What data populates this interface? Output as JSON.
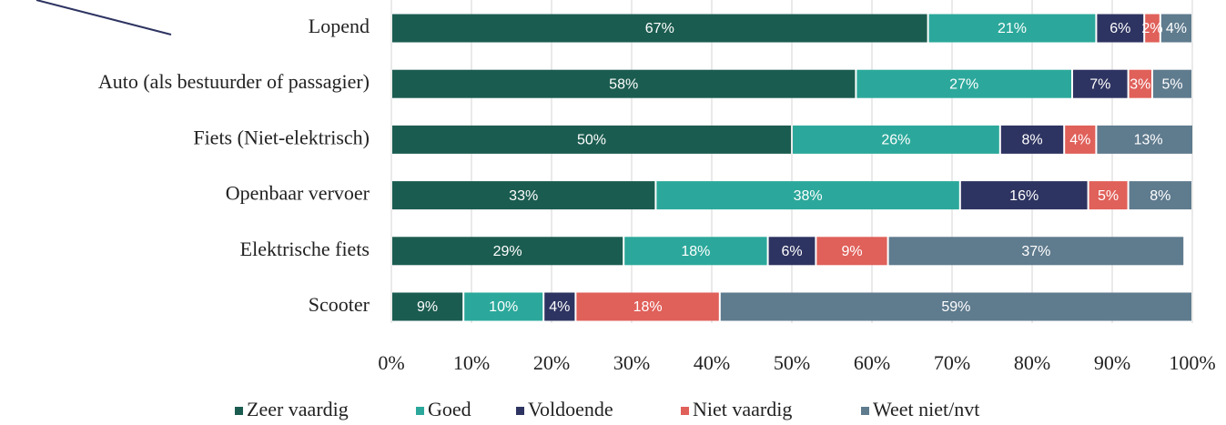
{
  "chart_data": {
    "type": "stacked_barh",
    "categories": [
      "Lopend",
      "Auto (als bestuurder of passagier)",
      "Fiets (Niet-elektrisch)",
      "Openbaar vervoer",
      "Elektrische fiets",
      "Scooter"
    ],
    "series": [
      {
        "name": "Zeer vaardig",
        "color": "#1b5c50",
        "values": [
          67,
          58,
          50,
          33,
          29,
          9
        ],
        "value_labels": [
          "67%",
          "58%",
          "50%",
          "33%",
          "29%",
          "9%"
        ]
      },
      {
        "name": "Goed",
        "color": "#2ba89b",
        "values": [
          21,
          27,
          26,
          38,
          18,
          10
        ],
        "value_labels": [
          "21%",
          "27%",
          "26%",
          "38%",
          "18%",
          "10%"
        ]
      },
      {
        "name": "Voldoende",
        "color": "#2e3461",
        "values": [
          6,
          7,
          8,
          16,
          6,
          4
        ],
        "value_labels": [
          "6%",
          "7%",
          "8%",
          "16%",
          "6%",
          "4%"
        ]
      },
      {
        "name": "Niet vaardig",
        "color": "#e0605a",
        "values": [
          2,
          3,
          4,
          5,
          9,
          18
        ],
        "value_labels": [
          "2%",
          "3%",
          "4%",
          "5%",
          "9%",
          "18%"
        ]
      },
      {
        "name": "Weet niet/nvt",
        "color": "#5f7b8e",
        "values": [
          4,
          5,
          13,
          8,
          37,
          59
        ],
        "value_labels": [
          "4%",
          "5%",
          "13%",
          "8%",
          "37%",
          "59%"
        ]
      }
    ],
    "xlim": [
      0,
      100
    ],
    "xticks": [
      {
        "value": 0,
        "label": "0%"
      },
      {
        "value": 10,
        "label": "10%"
      },
      {
        "value": 20,
        "label": "20%"
      },
      {
        "value": 30,
        "label": "30%"
      },
      {
        "value": 40,
        "label": "40%"
      },
      {
        "value": 50,
        "label": "50%"
      },
      {
        "value": 60,
        "label": "60%"
      },
      {
        "value": 70,
        "label": "70%"
      },
      {
        "value": 80,
        "label": "80%"
      },
      {
        "value": 90,
        "label": "90%"
      },
      {
        "value": 100,
        "label": "100%"
      }
    ],
    "grid": true,
    "legend": "bottom"
  }
}
